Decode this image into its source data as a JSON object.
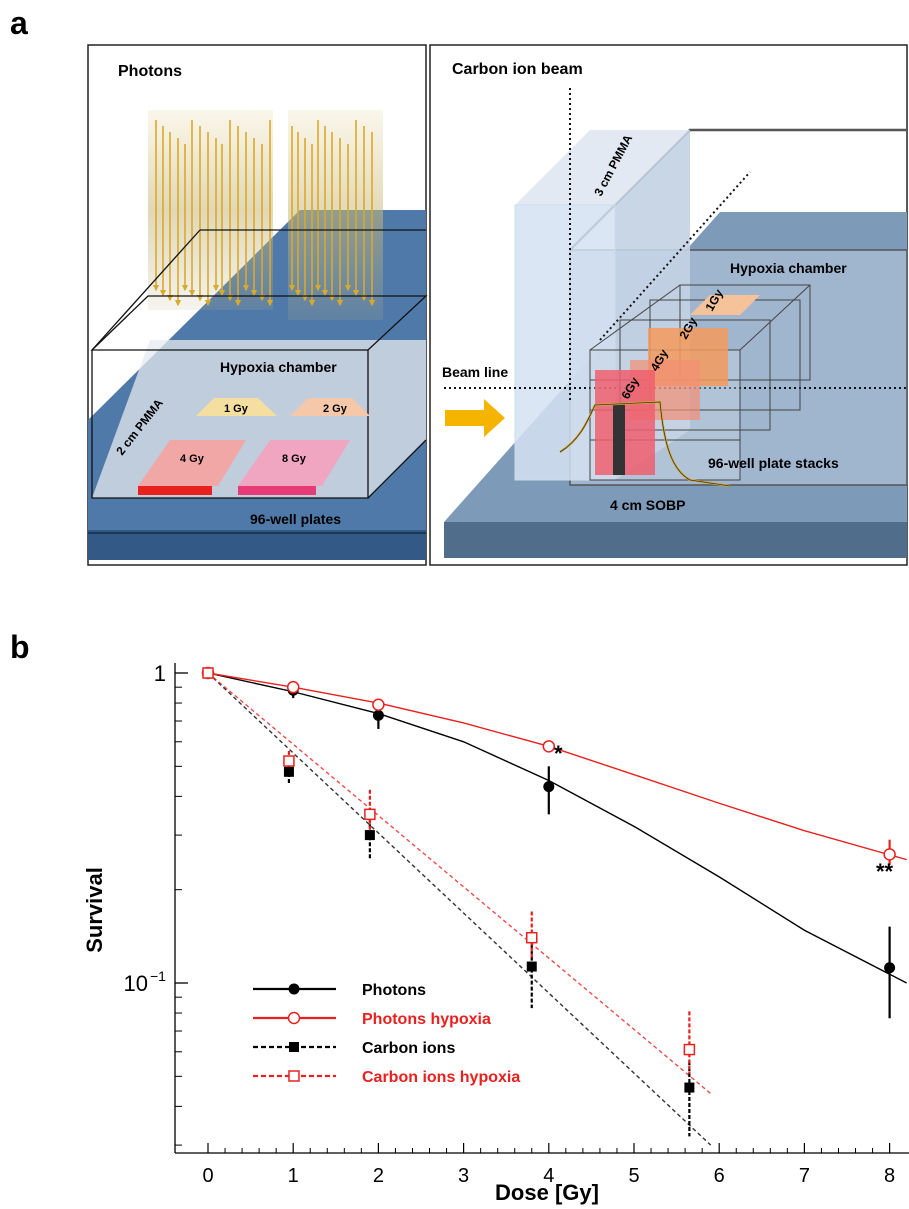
{
  "panel_a": {
    "label": "a",
    "photons": {
      "title": "Photons",
      "chamber_label": "Hypoxia chamber",
      "pmma_label": "2 cm PMMA",
      "plates_label": "96-well plates",
      "doses": [
        "1 Gy",
        "2 Gy",
        "4 Gy",
        "8 Gy"
      ]
    },
    "carbon": {
      "title": "Carbon ion beam",
      "pmma_label": "3 cm PMMA",
      "chamber_label": "Hypoxia chamber",
      "beam_label": "Beam line",
      "stacks_label": "96-well plate stacks",
      "sobp_label": "4 cm SOBP",
      "doses": [
        "6Gy",
        "4Gy",
        "2Gy",
        "1Gy"
      ]
    },
    "colors": {
      "floor": "#4f79a8",
      "floor_dark": "#335a86",
      "carbon_floor": "#7d9ab8",
      "arrow": "#d9a92b",
      "beam_arrow": "#f5b400"
    }
  },
  "panel_b": {
    "label": "b",
    "star_single": "*",
    "star_double": "**"
  },
  "chart_data": {
    "type": "scatter",
    "xlabel": "Dose [Gy]",
    "ylabel": "Survival",
    "xlim": [
      -0.4,
      8.2
    ],
    "ylim": [
      0.02,
      1.05
    ],
    "yscale": "log",
    "xticks": [
      "0",
      "1",
      "2",
      "3",
      "4",
      "5",
      "6",
      "7",
      "8"
    ],
    "yticks": [
      {
        "value": 1,
        "label": "1"
      },
      {
        "value": 0.1,
        "label": "10",
        "sup": "−1"
      }
    ],
    "legend_position": "bottom-left",
    "series": [
      {
        "name": "Photons",
        "color": "#000000",
        "marker": "filled-circle",
        "fit": "solid",
        "x": [
          0,
          1,
          2,
          4,
          8
        ],
        "y": [
          1.0,
          0.88,
          0.73,
          0.43,
          0.112
        ],
        "err_low": [
          0.0,
          0.05,
          0.07,
          0.08,
          0.035
        ],
        "err_high": [
          0.0,
          0.05,
          0.06,
          0.07,
          0.04
        ],
        "fit_x": [
          0,
          1,
          2,
          3,
          4,
          5,
          6,
          7,
          8.2
        ],
        "fit_y": [
          1.0,
          0.87,
          0.74,
          0.6,
          0.45,
          0.32,
          0.22,
          0.148,
          0.1
        ]
      },
      {
        "name": "Photons  hypoxia",
        "color": "#e8211f",
        "marker": "open-circle",
        "fit": "solid",
        "x": [
          0,
          1,
          2,
          4,
          8
        ],
        "y": [
          1.0,
          0.9,
          0.79,
          0.58,
          0.26
        ],
        "err_low": [
          0.0,
          0.03,
          0.03,
          0.02,
          0.02
        ],
        "err_high": [
          0.0,
          0.03,
          0.03,
          0.02,
          0.03
        ],
        "fit_x": [
          0,
          1,
          2,
          3,
          4,
          5,
          6,
          7,
          8.2
        ],
        "fit_y": [
          1.0,
          0.9,
          0.8,
          0.69,
          0.58,
          0.47,
          0.38,
          0.31,
          0.25
        ]
      },
      {
        "name": "Carbon ions",
        "color": "#000000",
        "marker": "filled-square",
        "fit": "dashed",
        "x": [
          0,
          0.95,
          1.9,
          3.8,
          5.65
        ],
        "y": [
          1.0,
          0.48,
          0.3,
          0.113,
          0.046
        ],
        "err_low": [
          0.0,
          0.04,
          0.05,
          0.03,
          0.014
        ],
        "err_high": [
          0.0,
          0.04,
          0.04,
          0.02,
          0.01
        ],
        "fit_x": [
          0,
          5.9
        ],
        "fit_y": [
          1.0,
          0.03
        ]
      },
      {
        "name": "Carbon ions hypoxia",
        "color": "#e8211f",
        "marker": "open-square",
        "fit": "dashed",
        "x": [
          0,
          0.95,
          1.9,
          3.8,
          5.65
        ],
        "y": [
          1.0,
          0.52,
          0.35,
          0.14,
          0.061
        ],
        "err_low": [
          0.0,
          0.03,
          0.04,
          0.02,
          0.01
        ],
        "err_high": [
          0.0,
          0.04,
          0.07,
          0.03,
          0.02
        ],
        "fit_x": [
          0,
          5.9
        ],
        "fit_y": [
          1.0,
          0.044
        ]
      }
    ]
  }
}
